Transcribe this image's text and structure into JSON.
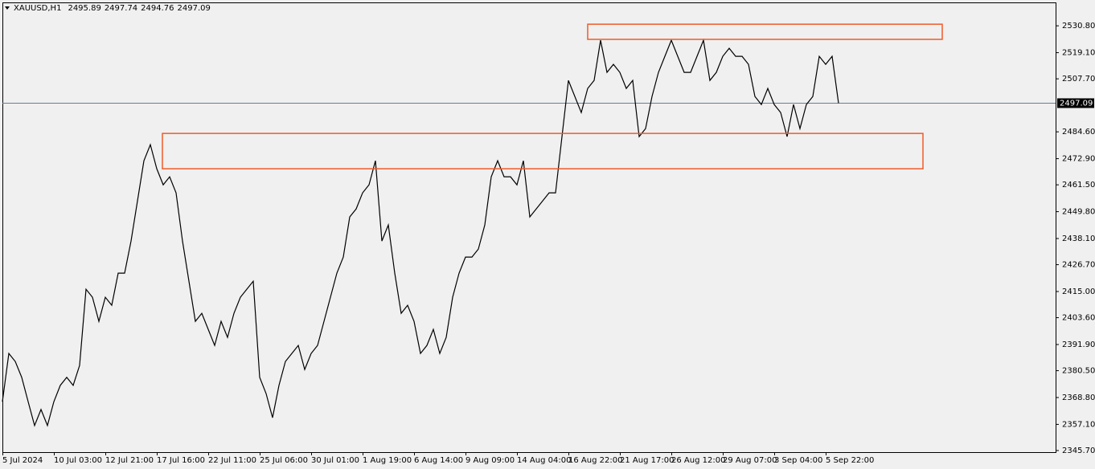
{
  "chart_data": {
    "type": "line",
    "header": {
      "symbol": "XAUUSD,H1",
      "ohlc": [
        2495.89,
        2497.74,
        2494.76,
        2497.09
      ]
    },
    "categories": [
      "5 Jul 2024",
      null,
      null,
      null,
      null,
      null,
      null,
      null,
      "10 Jul 03:00",
      null,
      null,
      null,
      null,
      null,
      null,
      null,
      "12 Jul 21:00",
      null,
      null,
      null,
      null,
      null,
      null,
      null,
      "17 Jul 16:00",
      null,
      null,
      null,
      null,
      null,
      null,
      null,
      "22 Jul 11:00",
      null,
      null,
      null,
      null,
      null,
      null,
      null,
      "25 Jul 06:00",
      null,
      null,
      null,
      null,
      null,
      null,
      null,
      "30 Jul 01:00",
      null,
      null,
      null,
      null,
      null,
      null,
      null,
      "1 Aug 19:00",
      null,
      null,
      null,
      null,
      null,
      null,
      null,
      "6 Aug 14:00",
      null,
      null,
      null,
      null,
      null,
      null,
      null,
      "9 Aug 09:00",
      null,
      null,
      null,
      null,
      null,
      null,
      null,
      "14 Aug 04:00",
      null,
      null,
      null,
      null,
      null,
      null,
      null,
      "16 Aug 22:00",
      null,
      null,
      null,
      null,
      null,
      null,
      null,
      "21 Aug 17:00",
      null,
      null,
      null,
      null,
      null,
      null,
      null,
      "26 Aug 12:00",
      null,
      null,
      null,
      null,
      null,
      null,
      null,
      "29 Aug 07:00",
      null,
      null,
      null,
      null,
      null,
      null,
      null,
      "3 Sep 04:00",
      null,
      null,
      null,
      null,
      null,
      null,
      null,
      "5 Sep 22:00",
      null,
      null
    ],
    "values": [
      2367.0,
      2388.0,
      2384.5,
      2377.6,
      2367.0,
      2356.6,
      2363.6,
      2356.6,
      2367.0,
      2374.1,
      2377.6,
      2374.1,
      2382.8,
      2416.0,
      2412.5,
      2402.0,
      2412.5,
      2409.0,
      2423.0,
      2423.0,
      2437.0,
      2454.5,
      2472.0,
      2479.0,
      2468.5,
      2461.5,
      2465.0,
      2458.0,
      2437.0,
      2419.5,
      2402.0,
      2405.5,
      2398.5,
      2391.5,
      2402.0,
      2395.0,
      2405.5,
      2412.5,
      2416.0,
      2419.5,
      2377.6,
      2370.5,
      2360.0,
      2374.1,
      2384.5,
      2388.0,
      2391.5,
      2381.0,
      2388.0,
      2391.5,
      2402.0,
      2412.5,
      2423.0,
      2430.0,
      2447.5,
      2451.0,
      2458.0,
      2461.5,
      2472.0,
      2437.0,
      2444.0,
      2423.0,
      2405.5,
      2409.0,
      2402.0,
      2388.0,
      2391.5,
      2398.5,
      2388.0,
      2395.0,
      2412.5,
      2423.0,
      2430.0,
      2430.0,
      2433.5,
      2444.0,
      2465.0,
      2472.0,
      2465.0,
      2465.0,
      2461.5,
      2472.0,
      2447.5,
      2451.0,
      2454.5,
      2458.0,
      2458.0,
      2482.5,
      2507.0,
      2500.0,
      2493.0,
      2503.5,
      2507.0,
      2524.5,
      2510.5,
      2514.0,
      2510.5,
      2503.5,
      2507.0,
      2482.5,
      2486.0,
      2500.0,
      2510.5,
      2517.5,
      2524.5,
      2517.5,
      2510.5,
      2510.5,
      2517.5,
      2524.5,
      2507.0,
      2510.5,
      2517.5,
      2521.0,
      2517.5,
      2517.5,
      2514.0,
      2500.0,
      2496.5,
      2503.5,
      2496.5,
      2493.0,
      2482.5,
      2496.5,
      2486.0,
      2496.5,
      2500.0,
      2517.5,
      2514.0,
      2517.5,
      2497.09
    ],
    "color": "#000000",
    "ylim": [
      2345.0,
      2541.0
    ],
    "yticks": [
      {
        "value": 2530.8,
        "label": "2530.80"
      },
      {
        "value": 2519.1,
        "label": "2519.10"
      },
      {
        "value": 2507.7,
        "label": "2507.70"
      },
      {
        "value": 2484.6,
        "label": "2484.60"
      },
      {
        "value": 2472.9,
        "label": "2472.90"
      },
      {
        "value": 2461.5,
        "label": "2461.50"
      },
      {
        "value": 2449.8,
        "label": "2449.80"
      },
      {
        "value": 2438.1,
        "label": "2438.10"
      },
      {
        "value": 2426.7,
        "label": "2426.70"
      },
      {
        "value": 2415.0,
        "label": "2415.00"
      },
      {
        "value": 2403.6,
        "label": "2403.60"
      },
      {
        "value": 2391.9,
        "label": "2391.90"
      },
      {
        "value": 2380.5,
        "label": "2380.50"
      },
      {
        "value": 2368.8,
        "label": "2368.80"
      },
      {
        "value": 2357.1,
        "label": "2357.10"
      },
      {
        "value": 2345.7,
        "label": "2345.70"
      }
    ],
    "current_price": 2497.09,
    "current_price_color": "#6a7d95",
    "zones": [
      {
        "top": 2531.5,
        "bottom": 2524.9
      },
      {
        "top": 2483.9,
        "bottom": 2468.5
      }
    ],
    "zone_color": "#f05a28",
    "grid": false
  }
}
